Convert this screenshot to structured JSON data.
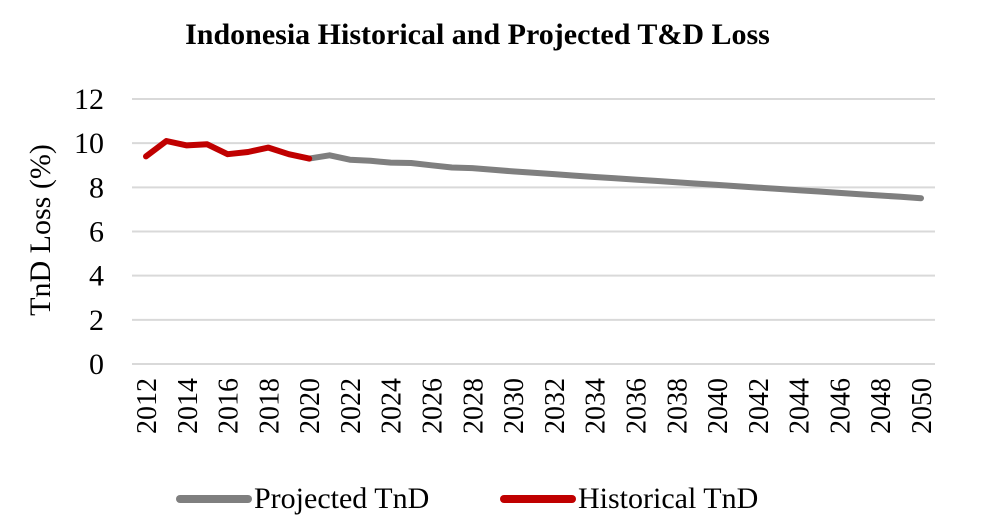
{
  "chart_data": {
    "type": "line",
    "title": "Indonesia Historical and Projected T&D Loss",
    "xlabel": "",
    "ylabel": "TnD Loss (%)",
    "ylim": [
      0,
      12
    ],
    "yticks": [
      "0",
      "2",
      "4",
      "6",
      "8",
      "10",
      "12"
    ],
    "xlim": [
      2012,
      2050
    ],
    "xticks": [
      "2012",
      "2014",
      "2016",
      "2018",
      "2020",
      "2022",
      "2024",
      "2026",
      "2028",
      "2030",
      "2032",
      "2034",
      "2036",
      "2038",
      "2040",
      "2042",
      "2044",
      "2046",
      "2048",
      "2050"
    ],
    "grid": "horizontal",
    "legend_position": "bottom",
    "series": [
      {
        "name": "Projected TnD",
        "color": "#7f7f7f",
        "x": [
          2020,
          2021,
          2022,
          2023,
          2024,
          2025,
          2026,
          2027,
          2028,
          2029,
          2030,
          2031,
          2032,
          2033,
          2034,
          2035,
          2036,
          2037,
          2038,
          2039,
          2040,
          2041,
          2042,
          2043,
          2044,
          2045,
          2046,
          2047,
          2048,
          2049,
          2050
        ],
        "y": [
          9.3,
          9.45,
          9.25,
          9.2,
          9.12,
          9.1,
          9.0,
          8.9,
          8.87,
          8.8,
          8.72,
          8.66,
          8.6,
          8.53,
          8.47,
          8.41,
          8.35,
          8.29,
          8.23,
          8.17,
          8.11,
          8.05,
          7.99,
          7.93,
          7.87,
          7.81,
          7.75,
          7.69,
          7.63,
          7.57,
          7.51
        ]
      },
      {
        "name": "Historical TnD",
        "color": "#c00000",
        "x": [
          2012,
          2013,
          2014,
          2015,
          2016,
          2017,
          2018,
          2019,
          2020
        ],
        "y": [
          9.4,
          10.1,
          9.9,
          9.95,
          9.5,
          9.6,
          9.8,
          9.5,
          9.3
        ]
      }
    ]
  }
}
